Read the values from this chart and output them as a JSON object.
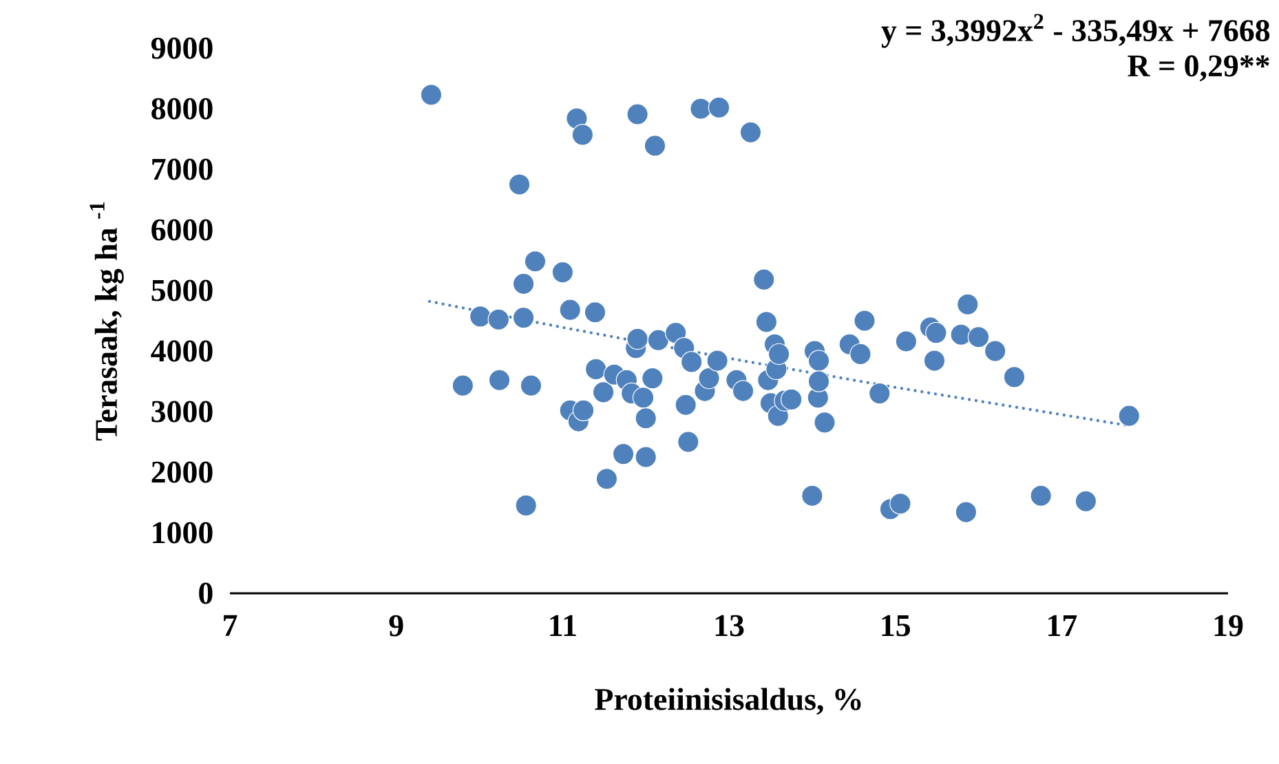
{
  "chart_data": {
    "type": "scatter",
    "xlabel": "Proteiinisisaldus, %",
    "ylabel": "Terasaak, kg ha $^{-1}$",
    "annotations": [
      "y = 3,3992x$^{2}$ - 335,49x + 7668",
      "R = 0,29**"
    ],
    "xlim": [
      7,
      19
    ],
    "xticks": [
      7,
      9,
      11,
      13,
      15,
      17,
      19
    ],
    "ylim": [
      0,
      9000
    ],
    "yticks": [
      0,
      1000,
      2000,
      3000,
      4000,
      5000,
      6000,
      7000,
      8000,
      9000
    ],
    "series": [
      {
        "color": "#4f81bd",
        "marker": "circle",
        "x": [
          9.42,
          9.8,
          10.01,
          10.23,
          10.24,
          10.48,
          10.53,
          10.53,
          10.62,
          10.56,
          10.67,
          11.0,
          11.09,
          11.17,
          11.24,
          11.09,
          11.19,
          11.25,
          11.39,
          11.4,
          11.49,
          11.53,
          11.62,
          11.73,
          11.77,
          11.83,
          11.88,
          11.9,
          11.9,
          11.97,
          12.0,
          12.0,
          12.08,
          12.11,
          12.15,
          12.36,
          12.46,
          12.48,
          12.51,
          12.55,
          12.66,
          12.71,
          12.76,
          12.86,
          12.88,
          13.09,
          13.17,
          13.26,
          13.42,
          13.45,
          13.47,
          13.5,
          13.55,
          13.57,
          13.59,
          13.6,
          13.67,
          13.75,
          14.0,
          14.03,
          14.08,
          14.07,
          14.08,
          14.15,
          14.45,
          14.58,
          14.63,
          14.81,
          14.94,
          15.06,
          15.13,
          15.42,
          15.49,
          15.47,
          15.79,
          15.87,
          15.85,
          16.0,
          16.2,
          16.43,
          16.75,
          17.29,
          17.81
        ],
        "values": [
          8230,
          3430,
          4570,
          4520,
          3520,
          6750,
          5110,
          4550,
          3430,
          1450,
          5480,
          5300,
          4680,
          7840,
          7570,
          3020,
          2840,
          3020,
          4640,
          3700,
          3320,
          1890,
          3610,
          2300,
          3520,
          3300,
          4050,
          7910,
          4200,
          3230,
          2890,
          2250,
          3550,
          7390,
          4180,
          4300,
          4050,
          3110,
          2500,
          3820,
          8000,
          3340,
          3550,
          3840,
          8020,
          3520,
          3340,
          7610,
          5180,
          4480,
          3520,
          3140,
          4110,
          3700,
          2930,
          3950,
          3180,
          3200,
          1610,
          4000,
          3840,
          3230,
          3500,
          2820,
          4110,
          3950,
          4500,
          3300,
          1390,
          1480,
          4160,
          4390,
          4300,
          3840,
          4270,
          4770,
          1340,
          4230,
          4000,
          3570,
          1610,
          1520,
          2930
        ]
      },
      {
        "type": "line",
        "color": "#4f81bd",
        "marker": "none",
        "line_style": "dotted",
        "x": [
          9.4,
          11,
          13,
          15,
          17.8
        ],
        "values": [
          4820,
          4390,
          3880,
          3400,
          2770
        ]
      }
    ]
  }
}
